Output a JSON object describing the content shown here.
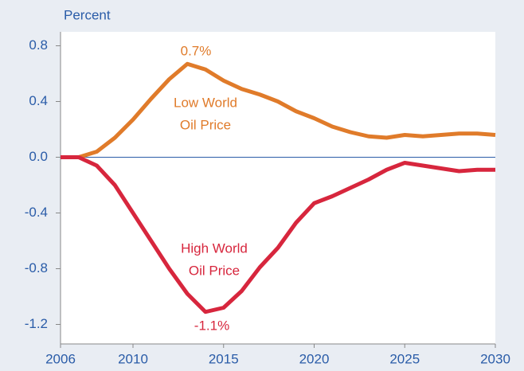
{
  "chart_data": {
    "type": "line",
    "y_axis_label": "Percent",
    "x": [
      2006,
      2007,
      2008,
      2009,
      2010,
      2011,
      2012,
      2013,
      2014,
      2015,
      2016,
      2017,
      2018,
      2019,
      2020,
      2021,
      2022,
      2023,
      2024,
      2025,
      2026,
      2027,
      2028,
      2029,
      2030
    ],
    "series": [
      {
        "color": "#e07b2a",
        "values": [
          0,
          0,
          0.04,
          0.14,
          0.27,
          0.42,
          0.56,
          0.67,
          0.63,
          0.55,
          0.49,
          0.45,
          0.4,
          0.33,
          0.28,
          0.22,
          0.18,
          0.15,
          0.14,
          0.16,
          0.15,
          0.16,
          0.17,
          0.17,
          0.16
        ]
      },
      {
        "color": "#d7263d",
        "values": [
          0,
          0,
          -0.06,
          -0.2,
          -0.4,
          -0.6,
          -0.8,
          -0.98,
          -1.11,
          -1.08,
          -0.96,
          -0.79,
          -0.65,
          -0.47,
          -0.33,
          -0.28,
          -0.22,
          -0.16,
          -0.09,
          -0.04,
          -0.06,
          -0.08,
          -0.1,
          -0.09,
          -0.09
        ]
      }
    ],
    "annotations": [
      "0.7%",
      "Low World",
      "Oil Price",
      "High World",
      "Oil Price",
      "-1.1%"
    ],
    "xlim": [
      2006,
      2030
    ],
    "xticks": [
      2006,
      2010,
      2015,
      2020,
      2025,
      2030
    ],
    "ylim": [
      -1.34,
      0.9
    ],
    "yticks": [
      {
        "value": 0.8,
        "label": "0.8"
      },
      {
        "value": 0.4,
        "label": "0.4"
      },
      {
        "value": 0,
        "label": "0.0"
      },
      {
        "value": -0.4,
        "label": "-0.4"
      },
      {
        "value": -0.8,
        "label": "-0.8"
      },
      {
        "value": -1.2,
        "label": "-1.2"
      }
    ]
  }
}
